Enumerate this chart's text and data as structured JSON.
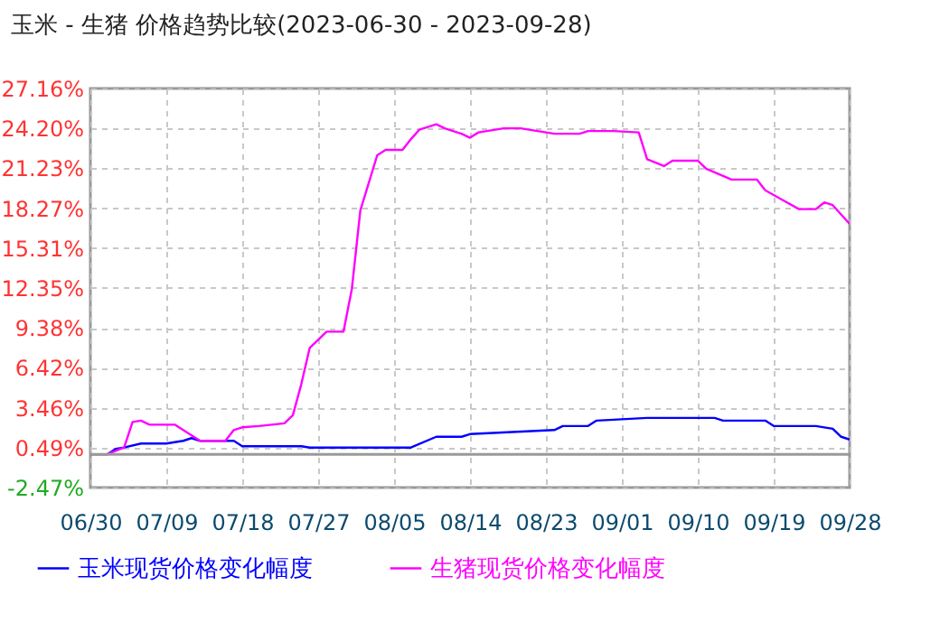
{
  "chart_data": {
    "type": "line",
    "title": "玉米 - 生猪 价格趋势比较(2023-06-30 - 2023-09-28)",
    "series": [
      {
        "name": "玉米现货价格变化幅度",
        "color": "#0000ff",
        "x": [
          "2023-06-30",
          "2023-07-02",
          "2023-07-03",
          "2023-07-04",
          "2023-07-06",
          "2023-07-09",
          "2023-07-11",
          "2023-07-12",
          "2023-07-13",
          "2023-07-17",
          "2023-07-18",
          "2023-07-25",
          "2023-07-26",
          "2023-08-07",
          "2023-08-10",
          "2023-08-13",
          "2023-08-14",
          "2023-08-24",
          "2023-08-25",
          "2023-08-28",
          "2023-08-29",
          "2023-09-01",
          "2023-09-04",
          "2023-09-12",
          "2023-09-13",
          "2023-09-18",
          "2023-09-19",
          "2023-09-24",
          "2023-09-26",
          "2023-09-27",
          "2023-09-28"
        ],
        "values": [
          0,
          0,
          0.4,
          0.5,
          0.8,
          0.8,
          1.0,
          1.2,
          1.0,
          1.0,
          0.6,
          0.6,
          0.5,
          0.5,
          1.3,
          1.3,
          1.5,
          1.8,
          2.1,
          2.1,
          2.5,
          2.6,
          2.7,
          2.7,
          2.5,
          2.5,
          2.1,
          2.1,
          1.9,
          1.3,
          1.1
        ]
      },
      {
        "name": "生猪现货价格变化幅度",
        "color": "#ff00ff",
        "x": [
          "2023-06-30",
          "2023-07-02",
          "2023-07-04",
          "2023-07-05",
          "2023-07-06",
          "2023-07-07",
          "2023-07-10",
          "2023-07-13",
          "2023-07-16",
          "2023-07-17",
          "2023-07-18",
          "2023-07-20",
          "2023-07-23",
          "2023-07-24",
          "2023-07-25",
          "2023-07-26",
          "2023-07-28",
          "2023-07-30",
          "2023-07-31",
          "2023-08-01",
          "2023-08-03",
          "2023-08-04",
          "2023-08-06",
          "2023-08-07",
          "2023-08-08",
          "2023-08-10",
          "2023-08-11",
          "2023-08-13",
          "2023-08-14",
          "2023-08-15",
          "2023-08-18",
          "2023-08-20",
          "2023-08-22",
          "2023-08-24",
          "2023-08-27",
          "2023-08-28",
          "2023-08-31",
          "2023-09-03",
          "2023-09-04",
          "2023-09-06",
          "2023-09-07",
          "2023-09-10",
          "2023-09-11",
          "2023-09-14",
          "2023-09-17",
          "2023-09-18",
          "2023-09-20",
          "2023-09-22",
          "2023-09-24",
          "2023-09-25",
          "2023-09-26",
          "2023-09-28"
        ],
        "values": [
          0,
          0,
          0.5,
          2.4,
          2.5,
          2.2,
          2.2,
          1.0,
          1.0,
          1.8,
          2.0,
          2.1,
          2.3,
          2.9,
          5.2,
          7.9,
          9.1,
          9.1,
          12.3,
          18.1,
          22.2,
          22.6,
          22.6,
          23.4,
          24.1,
          24.5,
          24.2,
          23.8,
          23.5,
          23.9,
          24.2,
          24.2,
          24.0,
          23.8,
          23.8,
          24.0,
          24.0,
          23.9,
          21.9,
          21.4,
          21.8,
          21.8,
          21.2,
          20.4,
          20.4,
          19.6,
          18.9,
          18.2,
          18.2,
          18.7,
          18.5,
          17.1
        ]
      }
    ],
    "xlim": [
      "2023-06-30",
      "2023-09-28"
    ],
    "xticks": [
      {
        "value": "2023-06-30",
        "label": "06/30"
      },
      {
        "value": "2023-07-09",
        "label": "07/09"
      },
      {
        "value": "2023-07-18",
        "label": "07/18"
      },
      {
        "value": "2023-07-27",
        "label": "07/27"
      },
      {
        "value": "2023-08-05",
        "label": "08/05"
      },
      {
        "value": "2023-08-14",
        "label": "08/14"
      },
      {
        "value": "2023-08-23",
        "label": "08/23"
      },
      {
        "value": "2023-09-01",
        "label": "09/01"
      },
      {
        "value": "2023-09-10",
        "label": "09/10"
      },
      {
        "value": "2023-09-19",
        "label": "09/19"
      },
      {
        "value": "2023-09-28",
        "label": "09/28"
      }
    ],
    "ylim": [
      -2.47,
      27.16
    ],
    "yticks": [
      {
        "value": -2.47,
        "label": "-2.47%"
      },
      {
        "value": 0.49,
        "label": "0.49%"
      },
      {
        "value": 3.46,
        "label": "3.46%"
      },
      {
        "value": 6.42,
        "label": "6.42%"
      },
      {
        "value": 9.38,
        "label": "9.38%"
      },
      {
        "value": 12.35,
        "label": "12.35%"
      },
      {
        "value": 15.31,
        "label": "15.31%"
      },
      {
        "value": 18.27,
        "label": "18.27%"
      },
      {
        "value": 21.23,
        "label": "21.23%"
      },
      {
        "value": 24.2,
        "label": "24.20%"
      },
      {
        "value": 27.16,
        "label": "27.16%"
      }
    ],
    "ref_lines": [
      {
        "axis": "y",
        "value": 0,
        "color": "#999999",
        "line_style": "solid"
      }
    ],
    "grid": true,
    "legend": "bottom",
    "marker": "none",
    "line_style": "solid"
  }
}
